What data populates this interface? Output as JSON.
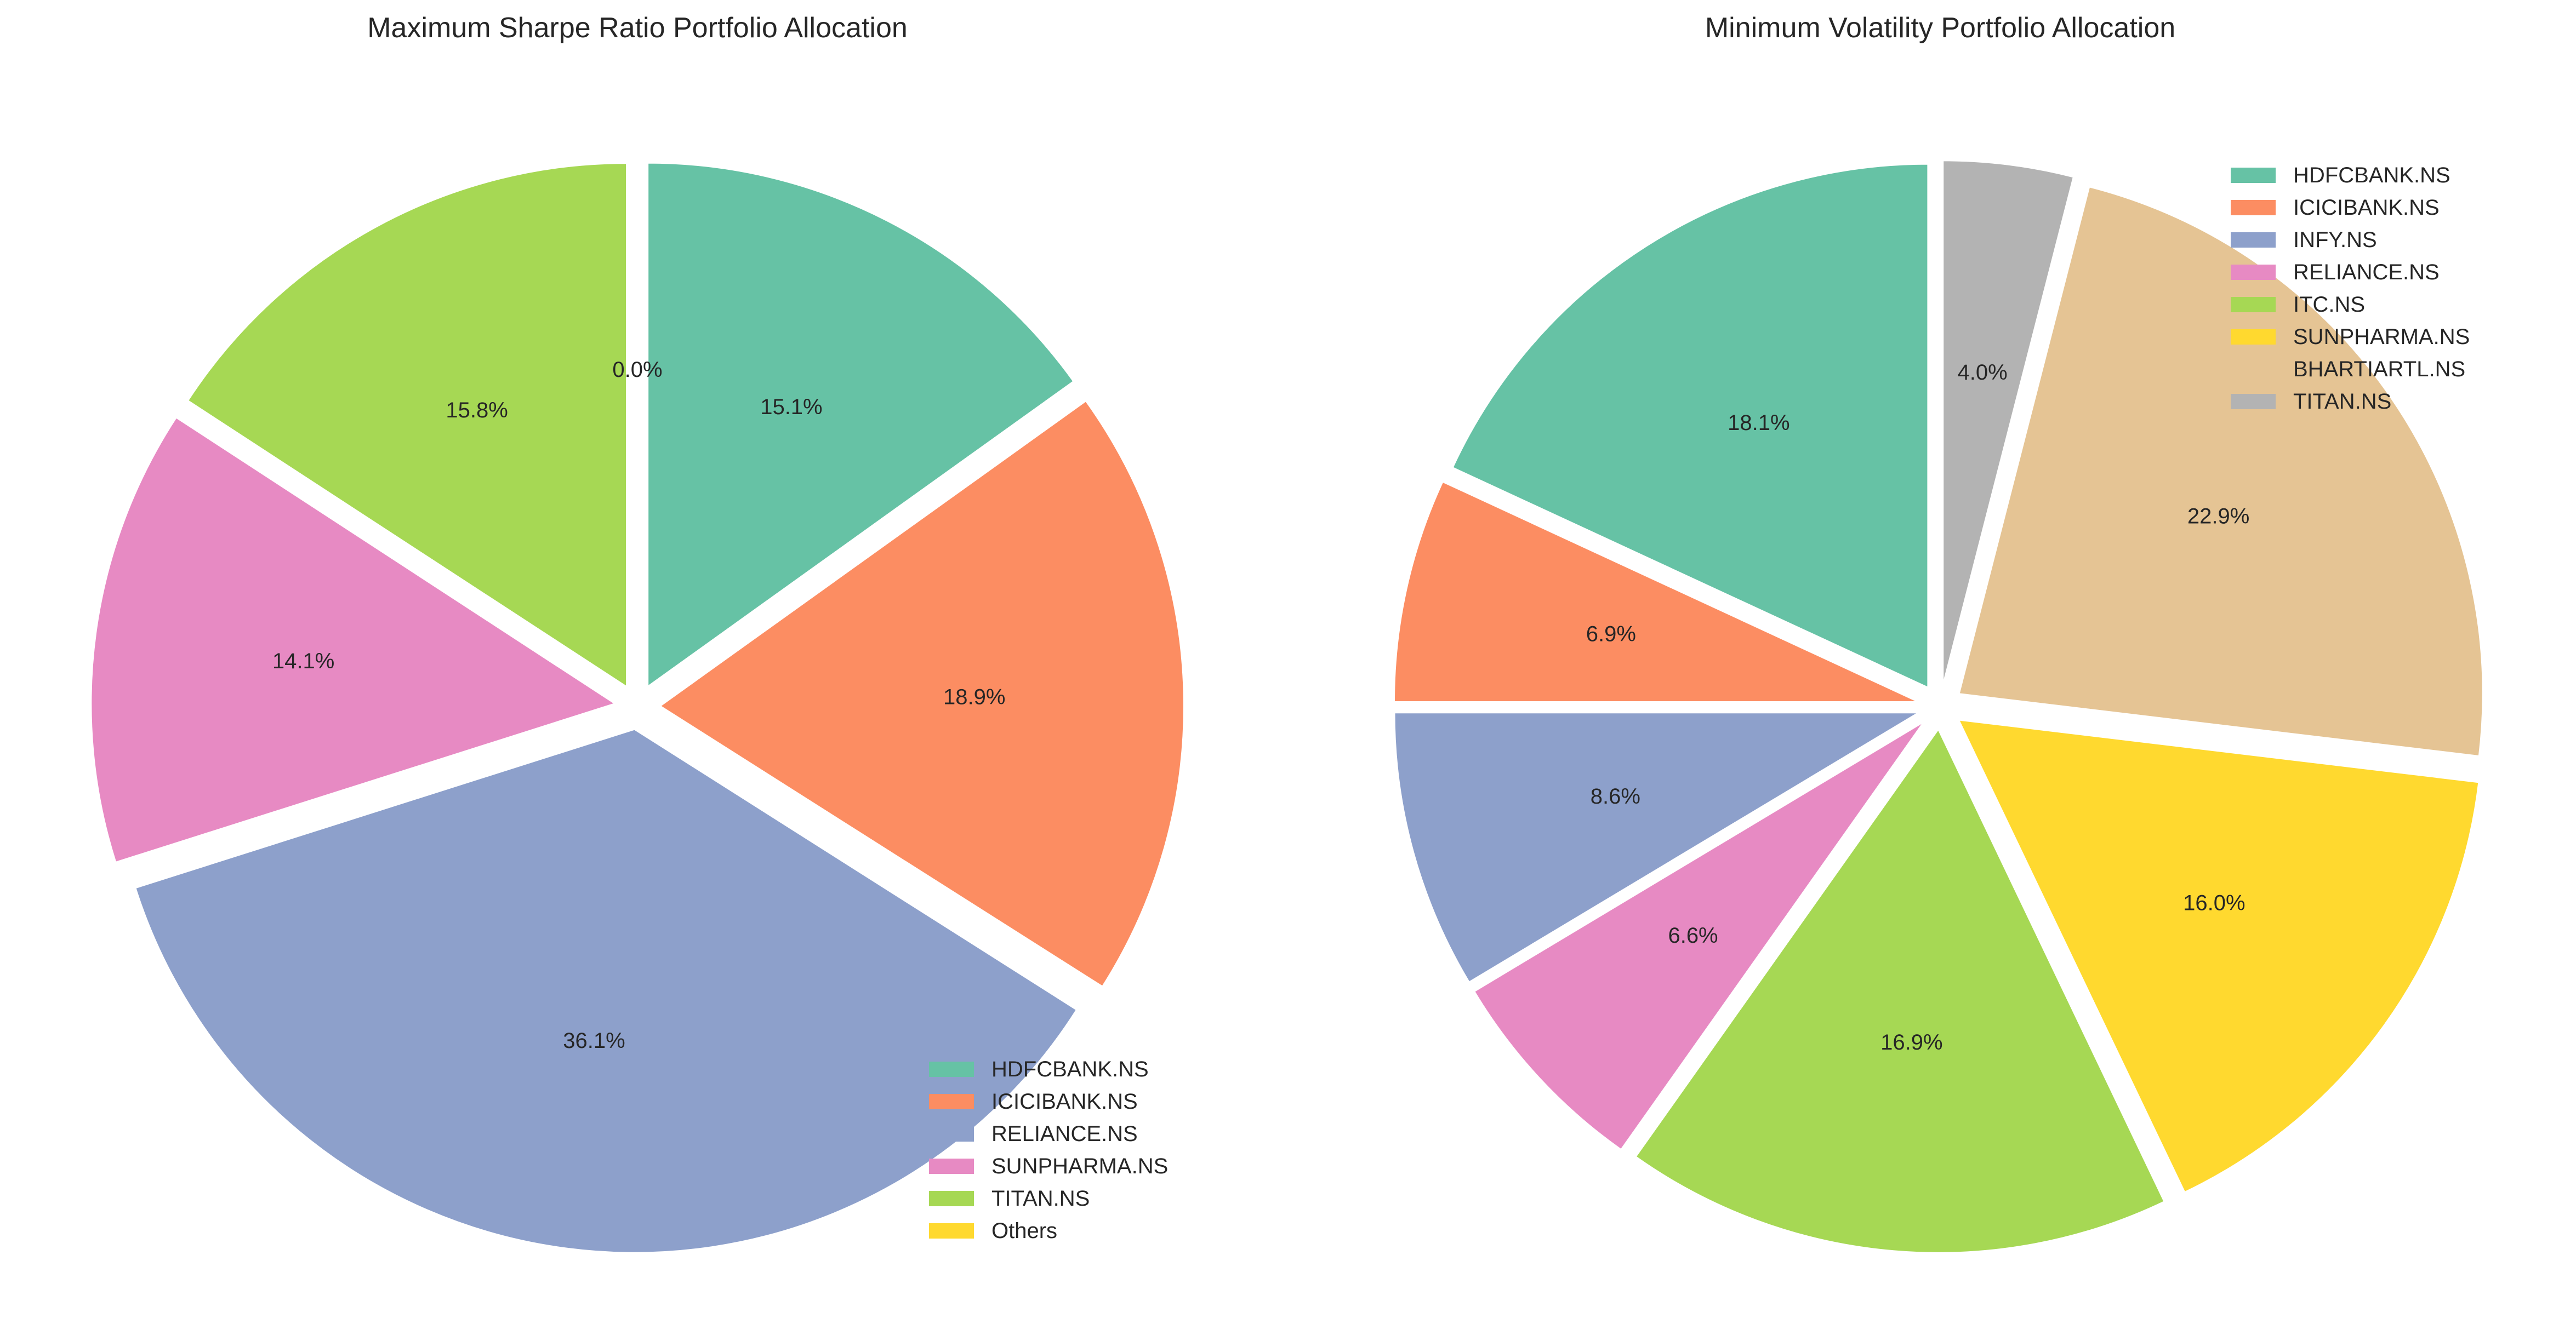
{
  "chart_data": [
    {
      "type": "pie",
      "title": "Maximum Sharpe Ratio Portfolio Allocation",
      "start_angle_deg": 90,
      "direction": "clockwise",
      "exploded": true,
      "legend_placement": "lower-right",
      "slices": [
        {
          "label": "HDFCBANK.NS",
          "value": 15.1,
          "display": "15.1%",
          "color": "#66c2a5"
        },
        {
          "label": "ICICIBANK.NS",
          "value": 18.9,
          "display": "18.9%",
          "color": "#fc8d62"
        },
        {
          "label": "RELIANCE.NS",
          "value": 36.1,
          "display": "36.1%",
          "color": "#8da0cb"
        },
        {
          "label": "SUNPHARMA.NS",
          "value": 14.1,
          "display": "14.1%",
          "color": "#e78ac3"
        },
        {
          "label": "TITAN.NS",
          "value": 15.8,
          "display": "15.8%",
          "color": "#a6d854"
        },
        {
          "label": "Others",
          "value": 0.0,
          "display": "0.0%",
          "color": "#ffd92f"
        }
      ]
    },
    {
      "type": "pie",
      "title": "Minimum Volatility Portfolio Allocation",
      "start_angle_deg": 90,
      "direction": "counterclockwise",
      "exploded": true,
      "legend_placement": "upper-right",
      "slices": [
        {
          "label": "HDFCBANK.NS",
          "value": 18.1,
          "display": "18.1%",
          "color": "#66c2a5"
        },
        {
          "label": "ICICIBANK.NS",
          "value": 6.9,
          "display": "6.9%",
          "color": "#fc8d62"
        },
        {
          "label": "INFY.NS",
          "value": 8.6,
          "display": "8.6%",
          "color": "#8da0cb"
        },
        {
          "label": "RELIANCE.NS",
          "value": 6.6,
          "display": "6.6%",
          "color": "#e78ac3"
        },
        {
          "label": "ITC.NS",
          "value": 16.9,
          "display": "16.9%",
          "color": "#a6d854"
        },
        {
          "label": "SUNPHARMA.NS",
          "value": 16.0,
          "display": "16.0%",
          "color": "#ffd92f"
        },
        {
          "label": "BHARTIARTL.NS",
          "value": 22.9,
          "display": "22.9%",
          "color": "#e5c494"
        },
        {
          "label": "TITAN.NS",
          "value": 4.0,
          "display": "4.0%",
          "color": "#b3b3b3"
        }
      ]
    }
  ]
}
